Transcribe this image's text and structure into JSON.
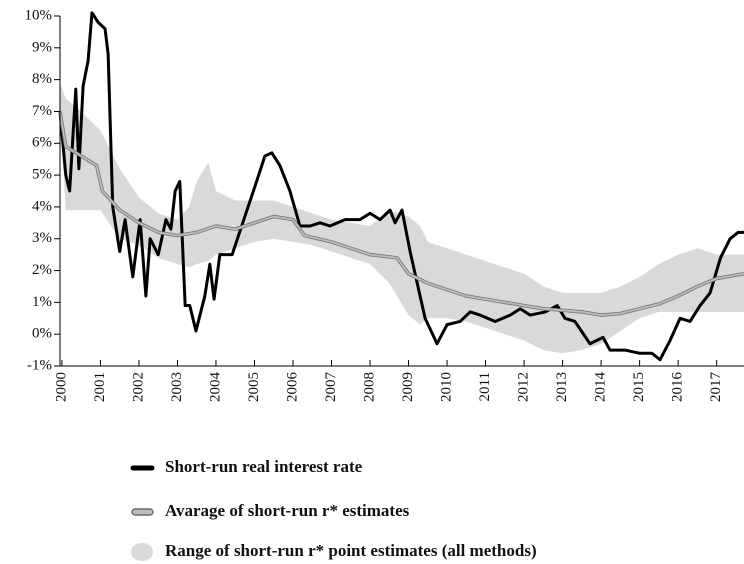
{
  "chart_data": {
    "type": "line",
    "xlim": [
      1999.95,
      2017.71
    ],
    "ylim": [
      -1,
      10
    ],
    "xticks": [
      2000,
      2001,
      2002,
      2003,
      2004,
      2005,
      2006,
      2007,
      2008,
      2009,
      2010,
      2011,
      2012,
      2013,
      2014,
      2015,
      2016,
      2017
    ],
    "yticks": [
      {
        "value": -1,
        "label": "-1%"
      },
      {
        "value": 0,
        "label": "0%"
      },
      {
        "value": 1,
        "label": "1%"
      },
      {
        "value": 2,
        "label": "2%"
      },
      {
        "value": 3,
        "label": "3%"
      },
      {
        "value": 4,
        "label": "4%"
      },
      {
        "value": 5,
        "label": "5%"
      },
      {
        "value": 6,
        "label": "6%"
      },
      {
        "value": 7,
        "label": "7%"
      },
      {
        "value": 8,
        "label": "8%"
      },
      {
        "value": 9,
        "label": "9%"
      },
      {
        "value": 10,
        "label": "10%"
      }
    ],
    "series": [
      {
        "name": "Short-run real interest rate",
        "color": "#000000",
        "x": [
          1999.95,
          2000.1,
          2000.2,
          2000.36,
          2000.44,
          2000.55,
          2000.68,
          2000.78,
          2000.94,
          2001.12,
          2001.2,
          2001.32,
          2001.5,
          2001.64,
          2001.84,
          2002.03,
          2002.18,
          2002.29,
          2002.5,
          2002.7,
          2002.83,
          2002.94,
          2003.06,
          2003.2,
          2003.32,
          2003.48,
          2003.71,
          2003.84,
          2003.95,
          2004.1,
          2004.42,
          2004.75,
          2005.0,
          2005.27,
          2005.45,
          2005.66,
          2005.92,
          2006.18,
          2006.44,
          2006.7,
          2006.96,
          2007.35,
          2007.74,
          2008.0,
          2008.26,
          2008.52,
          2008.65,
          2008.83,
          2009.04,
          2009.43,
          2009.74,
          2010.0,
          2010.34,
          2010.6,
          2010.86,
          2011.25,
          2011.64,
          2011.9,
          2012.16,
          2012.55,
          2012.86,
          2013.06,
          2013.32,
          2013.71,
          2014.05,
          2014.23,
          2014.62,
          2015.0,
          2015.32,
          2015.53,
          2015.79,
          2016.05,
          2016.31,
          2016.57,
          2016.83,
          2017.1,
          2017.35,
          2017.56,
          2017.71
        ],
        "values": [
          7.0,
          5.0,
          4.5,
          7.7,
          5.2,
          7.8,
          8.6,
          10.1,
          9.8,
          9.6,
          8.8,
          4.0,
          2.6,
          3.6,
          1.8,
          3.6,
          1.2,
          3.0,
          2.5,
          3.6,
          3.3,
          4.5,
          4.8,
          0.9,
          0.9,
          0.1,
          1.2,
          2.2,
          1.1,
          2.5,
          2.5,
          3.7,
          4.6,
          5.6,
          5.7,
          5.3,
          4.5,
          3.4,
          3.4,
          3.5,
          3.4,
          3.6,
          3.6,
          3.8,
          3.6,
          3.9,
          3.5,
          3.9,
          2.6,
          0.5,
          -0.3,
          0.3,
          0.4,
          0.7,
          0.6,
          0.4,
          0.6,
          0.8,
          0.6,
          0.7,
          0.9,
          0.5,
          0.4,
          -0.3,
          -0.1,
          -0.5,
          -0.5,
          -0.6,
          -0.6,
          -0.8,
          -0.2,
          0.5,
          0.4,
          0.9,
          1.3,
          2.4,
          3.0,
          3.2,
          3.2
        ]
      },
      {
        "name": "Avarage of short-run r* estimates",
        "color": "#bdbdbd",
        "x": [
          1999.95,
          2000.1,
          2000.5,
          2000.9,
          2001.05,
          2001.5,
          2002,
          2002.5,
          2003,
          2003.5,
          2004,
          2004.5,
          2005,
          2005.5,
          2006,
          2006.3,
          2007,
          2007.5,
          2008,
          2008.7,
          2009,
          2009.5,
          2010,
          2010.5,
          2011,
          2011.5,
          2012,
          2012.5,
          2013,
          2013.5,
          2014,
          2014.5,
          2015,
          2015.5,
          2016,
          2016.5,
          2017,
          2017.71
        ],
        "values": [
          7.0,
          5.9,
          5.6,
          5.3,
          4.5,
          3.9,
          3.5,
          3.2,
          3.1,
          3.2,
          3.4,
          3.3,
          3.5,
          3.7,
          3.6,
          3.1,
          2.9,
          2.7,
          2.5,
          2.4,
          1.9,
          1.6,
          1.4,
          1.2,
          1.1,
          1.0,
          0.9,
          0.8,
          0.75,
          0.7,
          0.6,
          0.65,
          0.8,
          0.95,
          1.2,
          1.5,
          1.75,
          1.9
        ]
      }
    ],
    "band": {
      "name": "Range of short-run r* point estimates (all methods)",
      "color": "#d9d9d9",
      "x": [
        1999.95,
        2000.1,
        2000.5,
        2001,
        2001.5,
        2002,
        2002.5,
        2003,
        2003.3,
        2003.5,
        2003.8,
        2004,
        2004.5,
        2005,
        2005.5,
        2006,
        2006.5,
        2007,
        2007.5,
        2008,
        2008.5,
        2009,
        2009.3,
        2009.5,
        2010,
        2010.5,
        2011,
        2011.5,
        2012,
        2012.5,
        2013,
        2013.5,
        2014,
        2014.5,
        2015,
        2015.5,
        2016,
        2016.5,
        2017,
        2017.71
      ],
      "upper": [
        7.9,
        7.4,
        7.0,
        6.4,
        5.2,
        4.3,
        3.8,
        3.6,
        4.0,
        4.8,
        5.4,
        4.5,
        4.2,
        4.2,
        4.2,
        4.0,
        3.8,
        3.6,
        3.5,
        3.4,
        3.9,
        3.7,
        3.4,
        2.9,
        2.7,
        2.5,
        2.3,
        2.1,
        1.9,
        1.5,
        1.3,
        1.3,
        1.3,
        1.5,
        1.8,
        2.2,
        2.5,
        2.7,
        2.5,
        2.5
      ],
      "lower": [
        7.0,
        3.9,
        3.9,
        3.9,
        3.0,
        2.8,
        2.4,
        2.2,
        2.1,
        2.2,
        2.3,
        2.5,
        2.7,
        2.9,
        3.0,
        2.9,
        2.8,
        2.6,
        2.4,
        2.2,
        1.6,
        0.6,
        0.3,
        0.5,
        0.5,
        0.4,
        0.2,
        0.0,
        -0.2,
        -0.5,
        -0.6,
        -0.5,
        -0.3,
        0.1,
        0.5,
        0.7,
        0.7,
        0.7,
        0.7,
        0.7
      ]
    }
  }
}
